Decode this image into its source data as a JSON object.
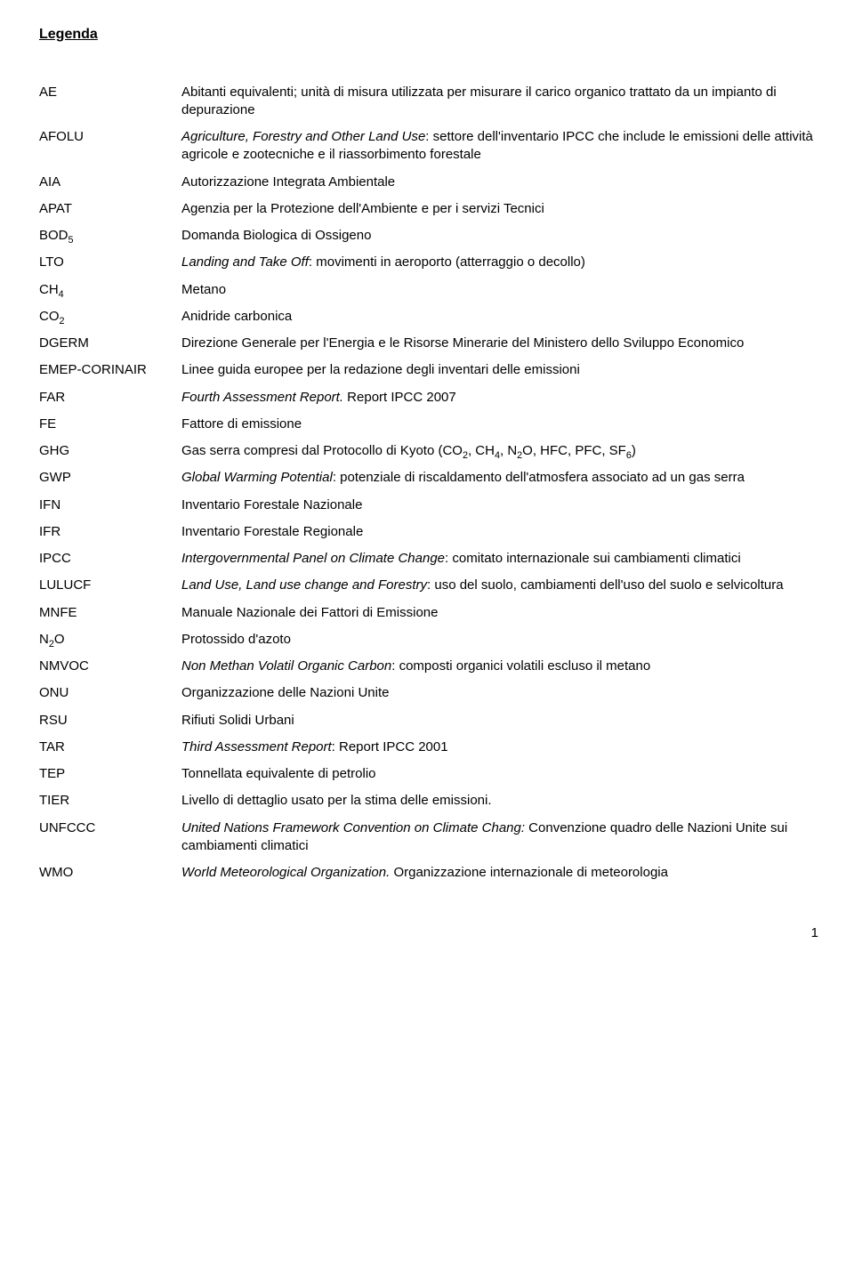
{
  "title": "Legenda",
  "page_number": "1",
  "entries": [
    {
      "term": "AE",
      "def": "Abitanti equivalenti; unità di misura utilizzata per misurare il carico organico trattato da un impianto di depurazione"
    },
    {
      "term": "AFOLU",
      "def_html": "<span class=\"italic\">Agriculture, Forestry and Other Land Use</span>: settore dell'inventario IPCC che include le emissioni delle attività agricole e zootecniche e il riassorbimento forestale"
    },
    {
      "term": "AIA",
      "def": "Autorizzazione Integrata Ambientale"
    },
    {
      "term": "APAT",
      "def": "Agenzia per la Protezione dell'Ambiente e per i servizi Tecnici"
    },
    {
      "term_html": "BOD<sub>5</sub>",
      "def": "Domanda Biologica di Ossigeno"
    },
    {
      "term": "LTO",
      "def_html": "<span class=\"italic\">Landing and Take Off</span>: movimenti in aeroporto (atterraggio o decollo)"
    },
    {
      "term_html": "CH<sub>4</sub>",
      "def": "Metano"
    },
    {
      "term_html": "CO<sub>2</sub>",
      "def": "Anidride carbonica"
    },
    {
      "term": "DGERM",
      "def": "Direzione Generale per l'Energia e le Risorse Minerarie del Ministero dello Sviluppo Economico"
    },
    {
      "term": "EMEP-CORINAIR",
      "def": "Linee guida europee per la redazione degli inventari delle emissioni"
    },
    {
      "term": "FAR",
      "def_html": "<span class=\"italic\">Fourth Assessment Report.</span> Report IPCC 2007"
    },
    {
      "term": "FE",
      "def": "Fattore di emissione"
    },
    {
      "term": "GHG",
      "def_html": "Gas serra compresi dal Protocollo di Kyoto (CO<sub>2</sub>, CH<sub>4</sub>, N<sub>2</sub>O, HFC, PFC, SF<sub>6</sub>)"
    },
    {
      "term": "GWP",
      "def_html": "<span class=\"italic\">Global Warming Potential</span>: potenziale di riscaldamento dell'atmosfera associato ad un gas serra"
    },
    {
      "term": "IFN",
      "def": "Inventario Forestale Nazionale"
    },
    {
      "term": "IFR",
      "def": "Inventario Forestale Regionale"
    },
    {
      "term": "IPCC",
      "def_html": "<span class=\"italic\">Intergovernmental Panel on Climate Change</span>: comitato internazionale  sui cambiamenti climatici"
    },
    {
      "term": "LULUCF",
      "def_html": "<span class=\"italic\">Land Use, Land use change and Forestry</span>: uso del suolo, cambiamenti dell'uso del suolo e selvicoltura"
    },
    {
      "term": "MNFE",
      "def": "Manuale Nazionale dei Fattori di Emissione"
    },
    {
      "term_html": "N<sub>2</sub>O",
      "def": "Protossido d'azoto"
    },
    {
      "term": "NMVOC",
      "def_html": "<span class=\"italic\">Non Methan Volatil Organic Carbon</span>: composti organici volatili escluso il metano"
    },
    {
      "term": "ONU",
      "def": "Organizzazione delle Nazioni Unite"
    },
    {
      "term": "RSU",
      "def": "Rifiuti Solidi Urbani"
    },
    {
      "term": "TAR",
      "def_html": "<span class=\"italic\">Third Assessment Report</span>: Report IPCC 2001"
    },
    {
      "term": "TEP",
      "def": "Tonnellata equivalente di petrolio"
    },
    {
      "term": "TIER",
      "def": "Livello di dettaglio usato per la stima delle emissioni."
    },
    {
      "term": "UNFCCC",
      "def_html": "<span class=\"italic\">United Nations Framework Convention on Climate Chang:</span> Convenzione quadro delle Nazioni Unite sui cambiamenti climatici"
    },
    {
      "term": "WMO",
      "def_html": "<span class=\"italic\">World Meteorological Organization.</span> Organizzazione internazionale di meteorologia"
    }
  ]
}
